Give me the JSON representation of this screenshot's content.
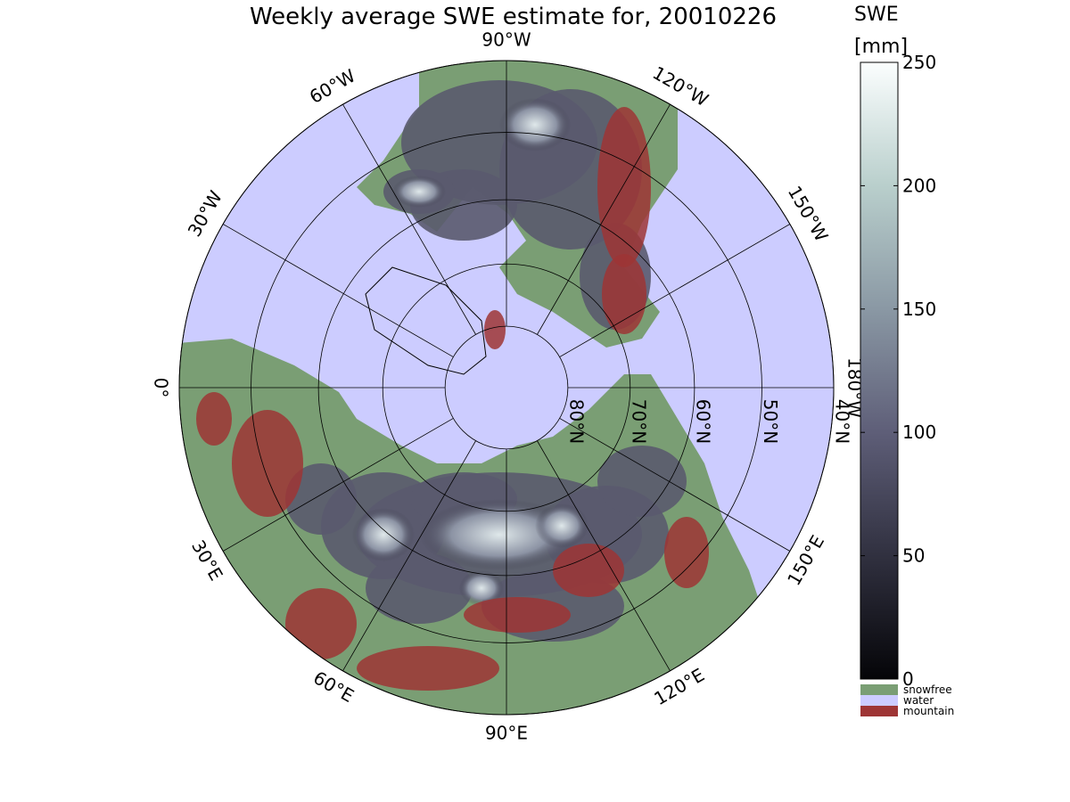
{
  "title": "Weekly average SWE estimate for, 20010226",
  "colorbar": {
    "quantity": "SWE",
    "unit": "[mm]",
    "ticks": [
      "0",
      "50",
      "100",
      "150",
      "200",
      "250"
    ],
    "tick_values": [
      0,
      50,
      100,
      150,
      200,
      250
    ],
    "range": [
      0,
      250
    ],
    "colors": {
      "low": "#0a0a10",
      "mid": "#6e6e8a",
      "high": "#f4fbfa"
    },
    "categories": [
      {
        "label": "snowfree",
        "color": "#7a9e74"
      },
      {
        "label": "water",
        "color": "#ccccff"
      },
      {
        "label": "mountain",
        "color": "#9e3535"
      }
    ]
  },
  "map": {
    "projection": "north polar stereographic",
    "water_color": "#ccccff",
    "land_color": "#7a9e74",
    "snow_color": "#5a5a6e",
    "mountain_color": "#9e3535",
    "longitude_labels": [
      {
        "text": "90°W",
        "lon": "90W"
      },
      {
        "text": "120°W",
        "lon": "120W"
      },
      {
        "text": "150°W",
        "lon": "150W"
      },
      {
        "text": "180°W",
        "lon": "180W"
      },
      {
        "text": "150°E",
        "lon": "150E"
      },
      {
        "text": "120°E",
        "lon": "120E"
      },
      {
        "text": "90°E",
        "lon": "90E"
      },
      {
        "text": "60°E",
        "lon": "60E"
      },
      {
        "text": "30°E",
        "lon": "30E"
      },
      {
        "text": "0°",
        "lon": "0"
      },
      {
        "text": "30°W",
        "lon": "30W"
      },
      {
        "text": "60°W",
        "lon": "60W"
      }
    ],
    "latitude_labels": [
      {
        "text": "80°N",
        "lat": 80
      },
      {
        "text": "70°N",
        "lat": 70
      },
      {
        "text": "60°N",
        "lat": 60
      },
      {
        "text": "50°N",
        "lat": 50
      },
      {
        "text": "40°N",
        "lat": 40
      }
    ]
  }
}
